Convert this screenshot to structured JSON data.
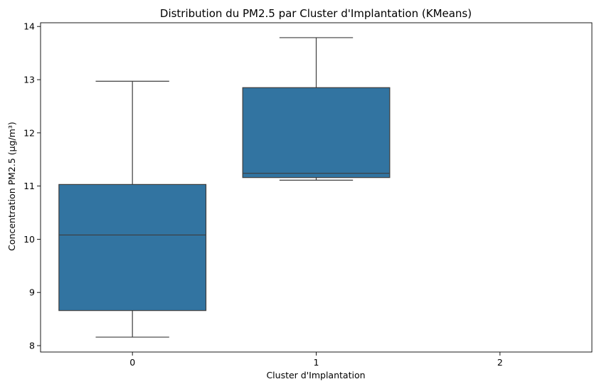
{
  "chart_data": {
    "type": "box",
    "title": "Distribution du PM2.5 par Cluster d'Implantation (KMeans)",
    "xlabel": "Cluster d'Implantation",
    "ylabel": "Concentration PM2.5 (µg/m³)",
    "categories": [
      "0",
      "1",
      "2"
    ],
    "ylim": [
      7.88,
      14.07
    ],
    "yticks": [
      8,
      9,
      10,
      11,
      12,
      13,
      14
    ],
    "grid": false,
    "boxes": [
      {
        "category": "0",
        "whisker_low": 8.16,
        "q1": 8.66,
        "median": 10.08,
        "q3": 11.03,
        "whisker_high": 12.97
      },
      {
        "category": "1",
        "whisker_low": 11.11,
        "q1": 11.16,
        "median": 11.24,
        "q3": 12.85,
        "whisker_high": 13.79
      },
      {
        "category": "2",
        "whisker_low": null,
        "q1": null,
        "median": null,
        "q3": null,
        "whisker_high": null
      }
    ],
    "colors": {
      "box_fill": "#3274a1",
      "line": "#3d3d3d",
      "axis": "#000000"
    }
  }
}
